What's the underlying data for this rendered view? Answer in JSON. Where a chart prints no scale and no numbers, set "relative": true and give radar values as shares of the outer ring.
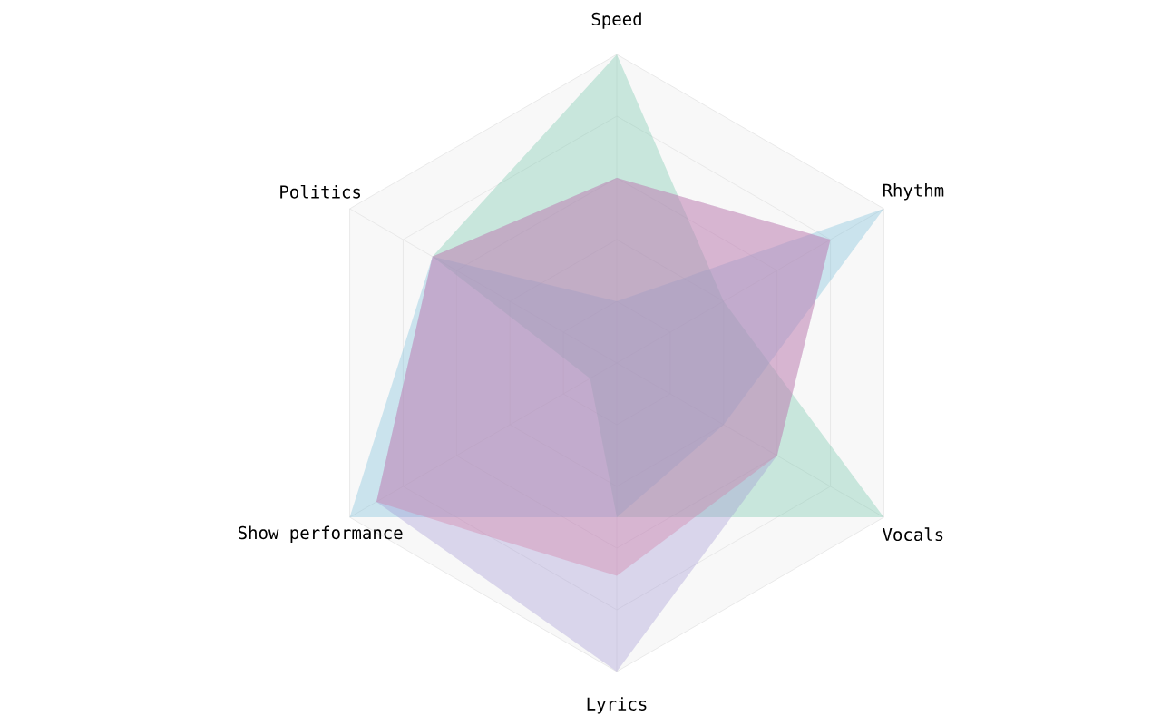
{
  "chart_data": {
    "type": "radar",
    "relative": true,
    "grid": true,
    "categories": [
      "Speed",
      "Rhythm",
      "Vocals",
      "Lyrics",
      "Show performance",
      "Politics"
    ],
    "series": [
      {
        "color": "#66c2a5",
        "values": [
          1,
          0.4,
          1,
          0.5,
          0.1,
          0.69
        ]
      },
      {
        "color": "#6cb8d8",
        "values": [
          0.2,
          1,
          0.4,
          0.5,
          1,
          0.69
        ]
      },
      {
        "color": "#9b8fd0",
        "values": [
          0.6,
          0.8,
          0.6,
          1,
          0.9,
          0.69
        ]
      },
      {
        "color": "#d6749f",
        "values": [
          0.6,
          0.8,
          0.6,
          0.69,
          0.9,
          0.69
        ]
      }
    ]
  }
}
